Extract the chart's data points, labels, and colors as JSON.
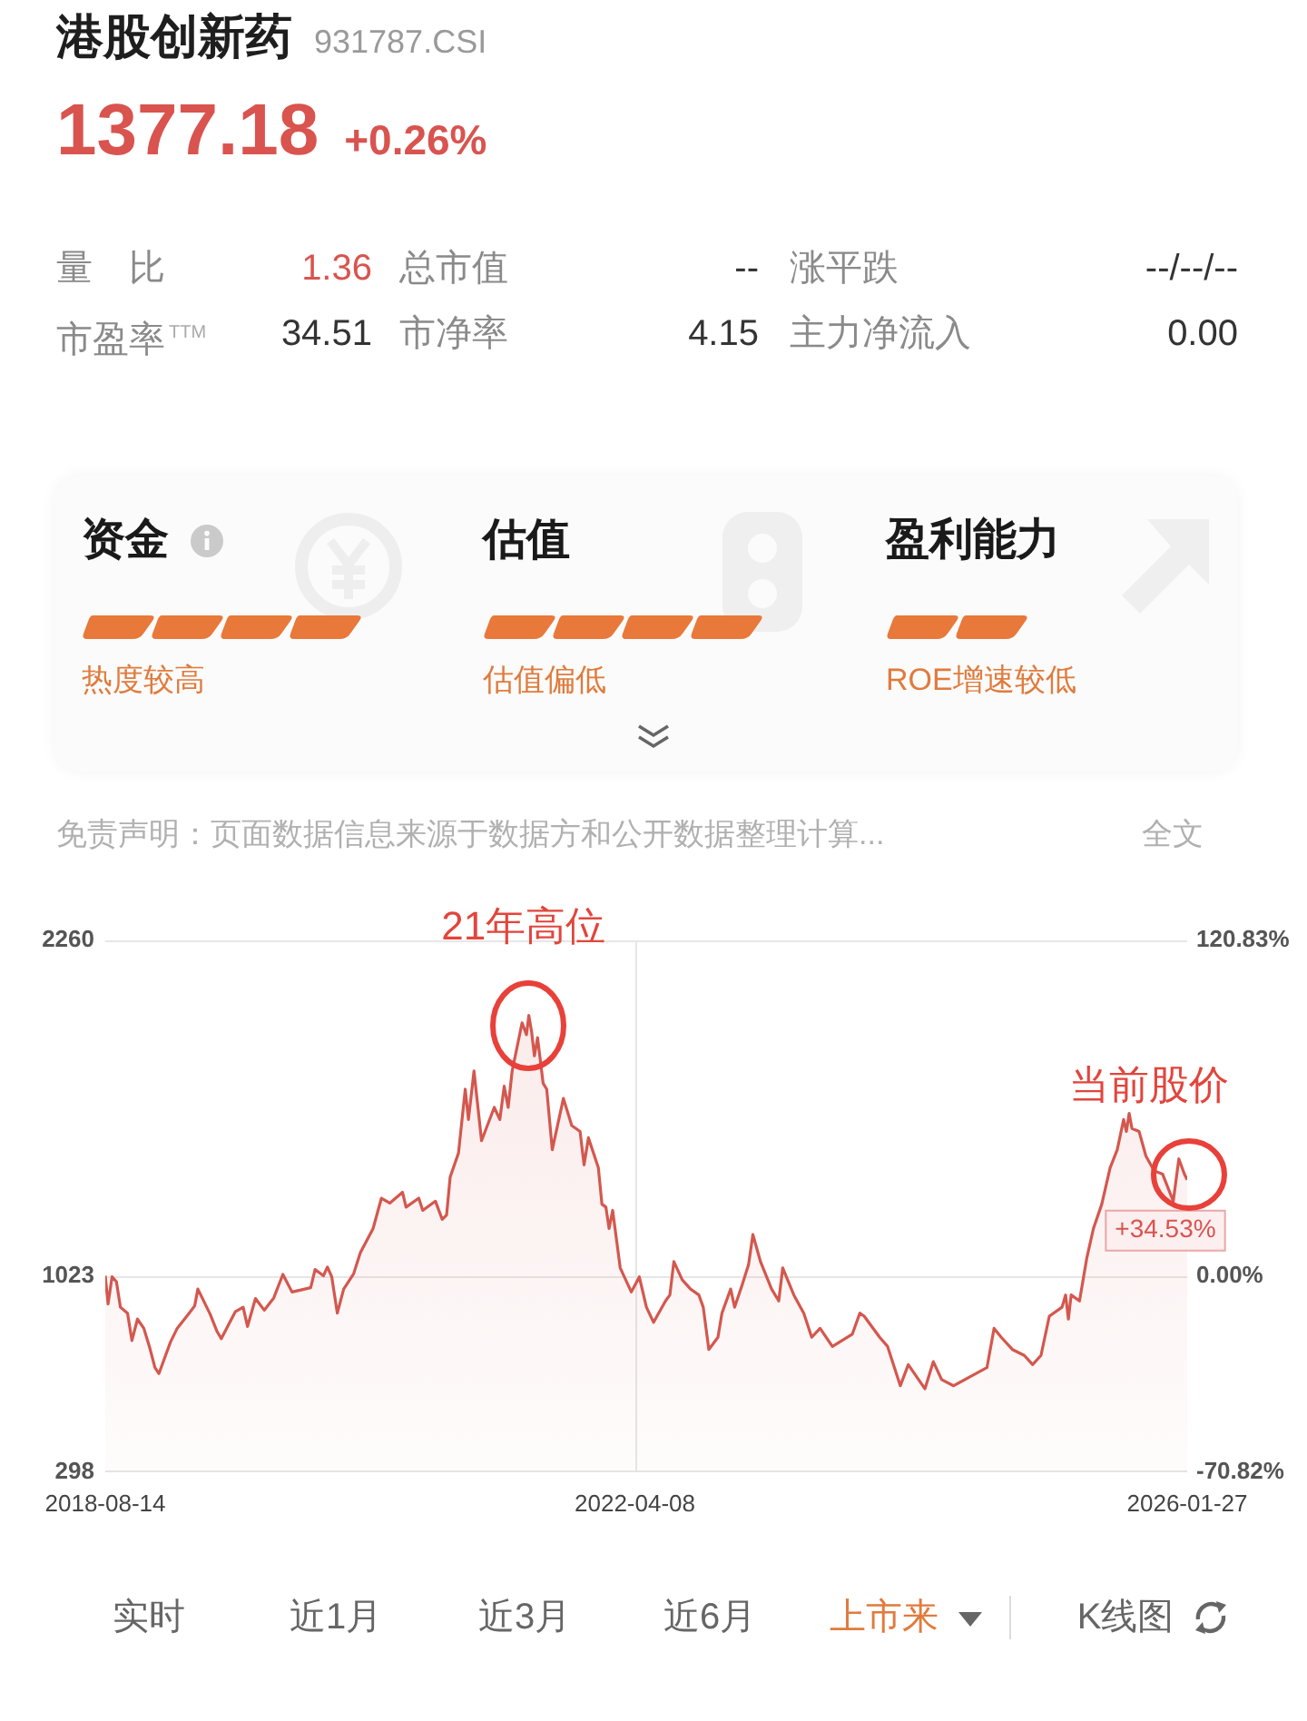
{
  "chart_data": [
    {
      "type": "other",
      "title": "港股创新药",
      "subtitle": "931787.CSI",
      "annotations": [
        "1377.18",
        "+0.26%",
        "量　比",
        "1.36",
        "总市值",
        "--",
        "涨平跌",
        "--/--/--",
        "市盈率$^{TTM}$",
        "34.51",
        "市净率",
        "4.15",
        "主力净流入",
        "0.00",
        "资金",
        "热度较高",
        "估值",
        "估值偏低",
        "盈利能力",
        "ROE增速较低",
        "免责声明：页面数据信息来源于数据方和公开数据整理计算...",
        "全文"
      ]
    },
    {
      "type": "area",
      "x": [
        "2018-08-14",
        "2018-08-21",
        "2018-08-31",
        "2018-09-11",
        "2018-09-21",
        "2018-10-09",
        "2018-10-20",
        "2018-11-03",
        "2018-11-19",
        "2018-12-03",
        "2018-12-17",
        "2018-12-27",
        "2019-01-10",
        "2019-01-25",
        "2019-02-11",
        "2019-03-13",
        "2019-03-27",
        "2019-04-04",
        "2019-05-05",
        "2019-05-22",
        "2019-06-02",
        "2019-06-18",
        "2019-07-07",
        "2019-07-27",
        "2019-08-07",
        "2019-08-27",
        "2019-09-18",
        "2019-10-12",
        "2019-11-04",
        "2019-11-27",
        "2020-01-13",
        "2020-01-24",
        "2020-02-14",
        "2020-02-24",
        "2020-03-06",
        "2020-03-20",
        "2020-04-05",
        "2020-04-30",
        "2020-05-17",
        "2020-06-18",
        "2020-07-09",
        "2020-07-30",
        "2020-08-31",
        "2020-09-09",
        "2020-10-11",
        "2020-10-21",
        "2020-11-22",
        "2020-12-09",
        "2020-12-20",
        "2020-12-29",
        "2021-01-19",
        "2021-02-05",
        "2021-02-13",
        "2021-02-27",
        "2021-03-18",
        "2021-04-19",
        "2021-05-03",
        "2021-05-14",
        "2021-05-24",
        "2021-06-03",
        "2021-06-28",
        "2021-07-09",
        "2021-07-15",
        "2021-07-22",
        "2021-07-29",
        "2021-08-06",
        "2021-08-20",
        "2021-08-29",
        "2021-09-12",
        "2021-10-10",
        "2021-10-31",
        "2021-11-21",
        "2021-12-01",
        "2021-12-12",
        "2022-01-06",
        "2022-01-15",
        "2022-01-25",
        "2022-02-02",
        "2022-02-11",
        "2022-03-02",
        "2022-03-30",
        "2022-04-19",
        "2022-05-07",
        "2022-05-25",
        "2022-06-24",
        "2022-07-05",
        "2022-07-15",
        "2022-08-05",
        "2022-08-26",
        "2022-09-16",
        "2022-09-27",
        "2022-10-11",
        "2022-11-03",
        "2022-11-13",
        "2022-12-05",
        "2022-12-15",
        "2023-01-02",
        "2023-01-19",
        "2023-01-30",
        "2023-02-18",
        "2023-03-18",
        "2023-04-05",
        "2023-04-15",
        "2023-05-13",
        "2023-06-07",
        "2023-06-27",
        "2023-07-18",
        "2023-08-18",
        "2023-10-07",
        "2023-10-26",
        "2023-11-06",
        "2023-12-15",
        "2024-01-04",
        "2024-02-05",
        "2024-02-25",
        "2024-04-07",
        "2024-04-28",
        "2024-05-19",
        "2024-06-18",
        "2024-07-30",
        "2024-09-10",
        "2024-09-28",
        "2024-10-16",
        "2024-11-13",
        "2024-12-13",
        "2025-01-03",
        "2025-01-24",
        "2025-02-14",
        "2025-03-18",
        "2025-03-27",
        "2025-04-03",
        "2025-04-10",
        "2025-05-01",
        "2025-05-19",
        "2025-06-05",
        "2025-06-26",
        "2025-07-17",
        "2025-08-04",
        "2025-08-20",
        "2025-08-27",
        "2025-09-03",
        "2025-09-10",
        "2025-09-28",
        "2025-10-15",
        "2025-11-05",
        "2025-11-26",
        "2025-12-23",
        "2026-01-06",
        "2026-01-20",
        "2026-01-27"
      ],
      "series": [
        {
          "color": "#d4574e",
          "values": [
            1023,
            919,
            1019,
            1001,
            907,
            885,
            784,
            863,
            829,
            762,
            684,
            662,
            718,
            778,
            829,
            885,
            912,
            974,
            881,
            818,
            791,
            836,
            890,
            907,
            836,
            939,
            896,
            941,
            1028,
            963,
            979,
            1046,
            1023,
            1055,
            1019,
            885,
            974,
            1030,
            1108,
            1197,
            1309,
            1291,
            1331,
            1276,
            1309,
            1264,
            1298,
            1231,
            1247,
            1387,
            1476,
            1711,
            1599,
            1778,
            1521,
            1644,
            1599,
            1722,
            1644,
            1778,
            1956,
            1912,
            1983,
            1923,
            1834,
            1901,
            1733,
            1711,
            1488,
            1677,
            1577,
            1555,
            1432,
            1532,
            1421,
            1287,
            1276,
            1197,
            1264,
            1052,
            963,
            1019,
            907,
            851,
            930,
            952,
            1075,
            1008,
            974,
            952,
            907,
            751,
            796,
            885,
            974,
            907,
            985,
            1064,
            1175,
            1075,
            974,
            930,
            1052,
            952,
            885,
            796,
            829,
            762,
            807,
            885,
            874,
            796,
            762,
            617,
            695,
            606,
            706,
            640,
            617,
            651,
            684,
            829,
            796,
            751,
            729,
            695,
            729,
            874,
            907,
            952,
            863,
            952,
            930,
            1086,
            1197,
            1287,
            1421,
            1488,
            1599,
            1555,
            1622,
            1566,
            1555,
            1465,
            1410,
            1398,
            1298,
            1454,
            1398,
            1377
          ]
        }
      ],
      "xlim": [
        "2018-08-14",
        "2026-01-27"
      ],
      "xticks": [
        "2018-08-14",
        "2022-04-08",
        "2026-01-27"
      ],
      "ylim": [
        298,
        2260
      ],
      "yticks": [
        298,
        1023,
        2260
      ],
      "y2lim": [
        -70.82,
        120.83
      ],
      "y2ticks": [
        {
          "value": -70.82,
          "label": "-70.82%"
        },
        {
          "value": 0,
          "label": "0.00%"
        },
        {
          "value": 120.83,
          "label": "120.83%"
        }
      ],
      "ref_lines": [
        {
          "axis": "x",
          "value": "2022-04-08",
          "color": "#e6e6e6"
        },
        {
          "axis": "y",
          "value": 1023,
          "color": "#e6e6e6"
        }
      ],
      "annotations": [
        {
          "text": "21年高位",
          "x": "2021-07-15",
          "y": 1983
        },
        {
          "text": "当前股价",
          "x": "2026-01-27",
          "y": 1377
        },
        {
          "text": "+34.53%",
          "x": "2026-01-27",
          "y": 1377
        },
        "实时",
        "近1月",
        "近3月",
        "近6月",
        "上市来",
        "K线图"
      ]
    }
  ]
}
